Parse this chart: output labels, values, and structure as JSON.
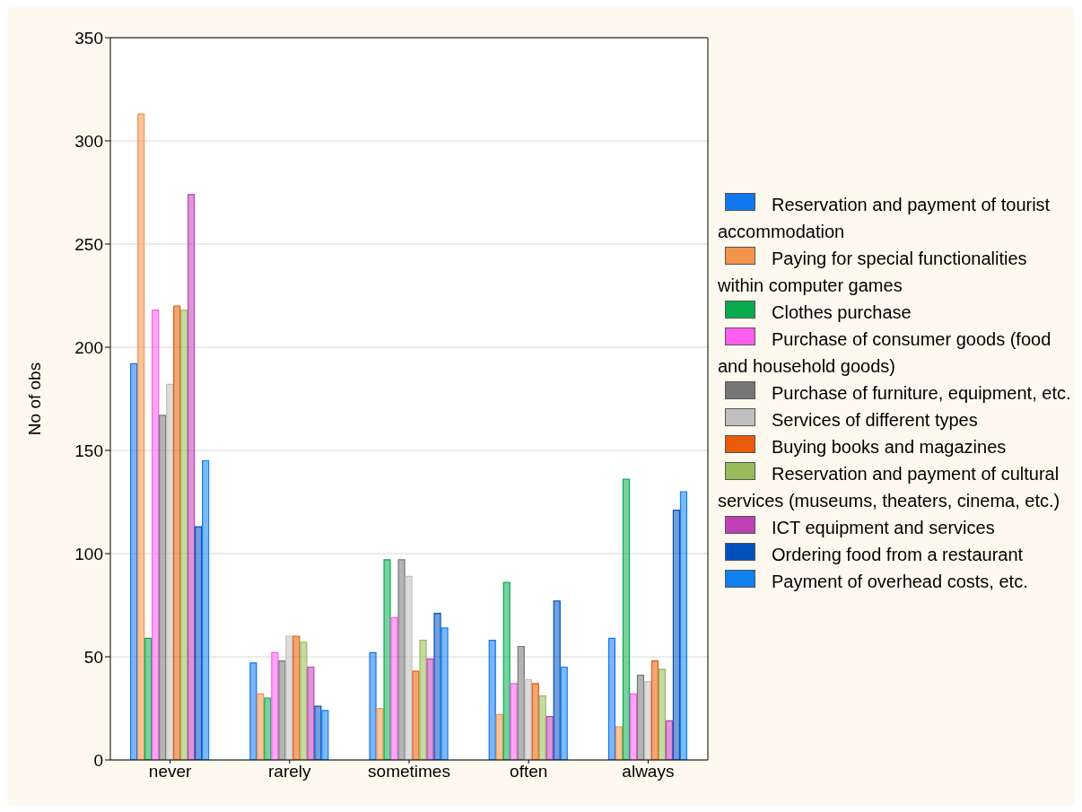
{
  "chart_data": {
    "type": "bar",
    "ylabel": "No of obs",
    "categories": [
      "never",
      "rarely",
      "sometimes",
      "often",
      "always"
    ],
    "series": [
      {
        "name": "Reservation and payment of tourist accommodation",
        "color": "#1177ee",
        "values": [
          192,
          47,
          52,
          58,
          59
        ]
      },
      {
        "name": "Paying for special functionalities within computer games",
        "color": "#f4934a",
        "values": [
          313,
          32,
          25,
          22,
          16
        ]
      },
      {
        "name": "Clothes purchase",
        "color": "#0aab4e",
        "values": [
          59,
          30,
          97,
          86,
          136
        ]
      },
      {
        "name": "Purchase of consumer goods (food and household goods)",
        "color": "#ff5cf0",
        "values": [
          218,
          52,
          69,
          37,
          32
        ]
      },
      {
        "name": "Purchase of furniture, equipment, etc.",
        "color": "#777777",
        "values": [
          167,
          48,
          97,
          55,
          41
        ]
      },
      {
        "name": "Services of different types",
        "color": "#c0c0c0",
        "values": [
          182,
          60,
          89,
          39,
          38
        ]
      },
      {
        "name": "Buying books and magazines",
        "color": "#e85c0a",
        "values": [
          220,
          60,
          43,
          37,
          48
        ]
      },
      {
        "name": "Reservation and payment of cultural services (museums, theaters, cinema, etc.)",
        "color": "#98bb5a",
        "values": [
          218,
          57,
          58,
          31,
          44
        ]
      },
      {
        "name": "ICT equipment and services",
        "color": "#c040b8",
        "values": [
          274,
          45,
          49,
          21,
          19
        ]
      },
      {
        "name": "Ordering food from a restaurant",
        "color": "#0050c0",
        "values": [
          113,
          26,
          71,
          77,
          121
        ]
      },
      {
        "name": "Payment of overhead costs, etc.",
        "color": "#1180f0",
        "values": [
          145,
          24,
          64,
          45,
          130
        ]
      }
    ],
    "ylim": [
      0,
      350
    ],
    "yticks": [
      0,
      50,
      100,
      150,
      200,
      250,
      300,
      350
    ],
    "grid": "y",
    "legend": "right"
  }
}
